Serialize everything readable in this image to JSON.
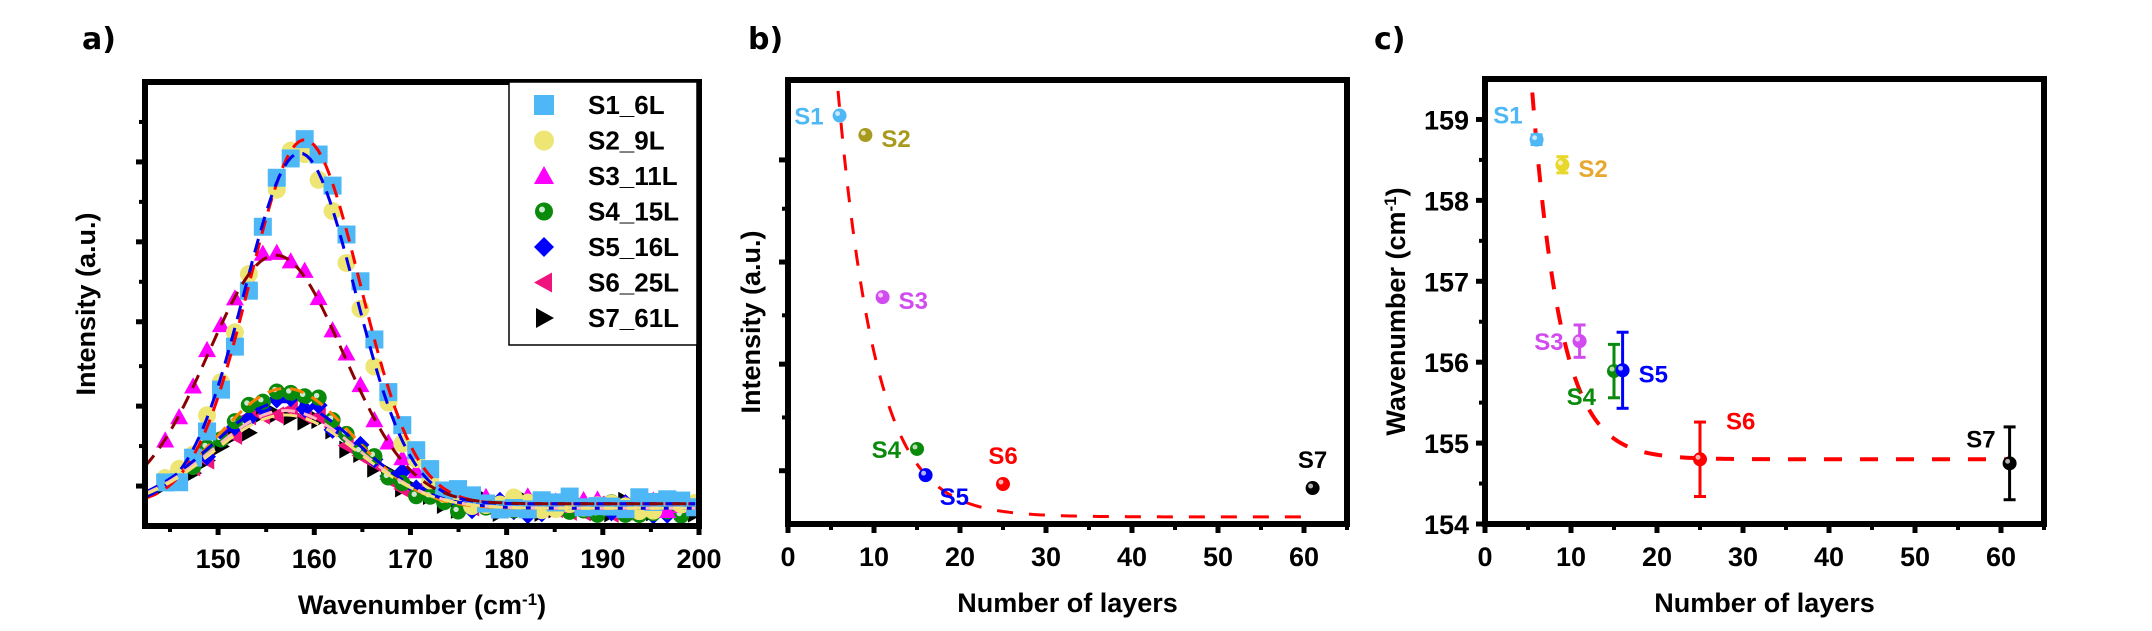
{
  "panels": {
    "a": {
      "label": "a)"
    },
    "b": {
      "label": "b)"
    },
    "c": {
      "label": "c)"
    }
  },
  "chart_data": [
    {
      "id": "a",
      "type": "scatter",
      "title": "",
      "xlabel": "Wavenumber (cm-1)",
      "xlabel_main": "Wavenumber (cm",
      "xlabel_sup": "-1",
      "xlabel_end": ")",
      "ylabel": "Intensity (a.u.)",
      "xlim": [
        142.4,
        200
      ],
      "ylim": [
        0,
        1
      ],
      "xticks": [
        150,
        160,
        170,
        180,
        190,
        200
      ],
      "yticks_visible_labels": false,
      "legend_position": "upper right",
      "series": [
        {
          "name": "S1_6L",
          "marker": "square",
          "color": "#4DB8F5",
          "fit_color": "#FF0000",
          "peak_x": 159,
          "peak_y": 0.82,
          "width": 11.5,
          "base": 0.05
        },
        {
          "name": "S2_9L",
          "marker": "circle",
          "color": "#EDE574",
          "fit_color": "#0000EE",
          "peak_x": 158.5,
          "peak_y": 0.79,
          "width": 11.5,
          "base": 0.05
        },
        {
          "name": "S3_11L",
          "marker": "triangle-up",
          "color": "#FF00FF",
          "fit_color": "#8B0000",
          "peak_x": 156,
          "peak_y": 0.56,
          "width": 14,
          "base": 0.05
        },
        {
          "name": "S4_15L",
          "marker": "sphere",
          "color": "#0A8A0A",
          "fit_color": "#FF7F00",
          "peak_x": 157,
          "peak_y": 0.27,
          "width": 14,
          "base": 0.04
        },
        {
          "name": "S5_16L",
          "marker": "diamond",
          "color": "#0000FF",
          "fit_color": "#0000EE",
          "peak_x": 157,
          "peak_y": 0.24,
          "width": 15,
          "base": 0.04
        },
        {
          "name": "S6_25L",
          "marker": "triangle-left",
          "color": "#F0137E",
          "fit_color": "#FFB6C1",
          "peak_x": 157,
          "peak_y": 0.22,
          "width": 15,
          "base": 0.04
        },
        {
          "name": "S7_61L",
          "marker": "triangle-right",
          "color": "#000000",
          "fit_color": "#F5E07A",
          "peak_x": 157,
          "peak_y": 0.21,
          "width": 15,
          "base": 0.04
        }
      ]
    },
    {
      "id": "b",
      "type": "scatter",
      "title": "",
      "xlabel": "Number of layers",
      "ylabel": "Intensity (a.u.)",
      "xlim": [
        0,
        65
      ],
      "ylim": [
        0,
        1
      ],
      "xticks": [
        0,
        10,
        20,
        30,
        40,
        50,
        60
      ],
      "yticks_major": [
        0.12,
        0.36,
        0.59,
        0.82
      ],
      "yticks_minor": [
        0.24,
        0.47,
        0.71
      ],
      "points": [
        {
          "label": "S1",
          "x": 6,
          "y": 0.92,
          "color": "#4DB8F5",
          "label_side": "left"
        },
        {
          "label": "S2",
          "x": 9,
          "y": 0.876,
          "color": "#A89A1C",
          "label_side": "right"
        },
        {
          "label": "S3",
          "x": 11,
          "y": 0.511,
          "color": "#D24BF0",
          "label_side": "right"
        },
        {
          "label": "S4",
          "x": 15,
          "y": 0.169,
          "color": "#0A8A0A",
          "label_side": "left"
        },
        {
          "label": "S5",
          "x": 16,
          "y": 0.11,
          "color": "#0000FF",
          "label_side": "below-right"
        },
        {
          "label": "S6",
          "x": 25,
          "y": 0.09,
          "color": "#FF0000",
          "label_side": "above"
        },
        {
          "label": "S7",
          "x": 61,
          "y": 0.081,
          "color": "#000000",
          "label_side": "above"
        }
      ],
      "fit": {
        "type": "exponential decay",
        "color": "#FF0000",
        "style": "dashed",
        "y0": 0.016,
        "A": 3.6,
        "t": 4.4
      }
    },
    {
      "id": "c",
      "type": "scatter",
      "title": "",
      "xlabel": "Number of layers",
      "ylabel": "Wavenumber (cm-1)",
      "ylabel_main": "Wavenumber (cm",
      "ylabel_sup": "-1",
      "ylabel_end": ")",
      "xlim": [
        0,
        65
      ],
      "ylim": [
        154,
        159.5
      ],
      "xticks": [
        0,
        10,
        20,
        30,
        40,
        50,
        60
      ],
      "yticks": [
        154,
        155,
        156,
        157,
        158,
        159
      ],
      "points": [
        {
          "label": "S1",
          "x": 6,
          "y": 158.75,
          "err": 0.06,
          "color": "#4DB8F5",
          "label_side": "upper-left"
        },
        {
          "label": "S2",
          "x": 9,
          "y": 158.44,
          "err": 0.1,
          "color": "#E8D82A",
          "label_color": "#E8A830",
          "label_side": "right"
        },
        {
          "label": "S3",
          "x": 11,
          "y": 156.26,
          "err": 0.2,
          "color": "#D24BF0",
          "label_side": "left"
        },
        {
          "label": "S4",
          "x": 15,
          "y": 155.89,
          "err": 0.33,
          "color": "#0A8A0A",
          "label_side": "lower-left"
        },
        {
          "label": "S5",
          "x": 16,
          "y": 155.9,
          "err": 0.47,
          "color": "#0000FF",
          "label_side": "right"
        },
        {
          "label": "S6",
          "x": 25,
          "y": 154.8,
          "err": 0.46,
          "color": "#FF0000",
          "label_side": "upper-right"
        },
        {
          "label": "S7",
          "x": 61,
          "y": 154.75,
          "err": 0.45,
          "color": "#000000",
          "label_side": "upper-left"
        }
      ],
      "fit": {
        "type": "exponential decay",
        "color": "#FF0000",
        "style": "dashed",
        "y0": 154.8,
        "A": 24,
        "t": 3.3
      }
    }
  ]
}
